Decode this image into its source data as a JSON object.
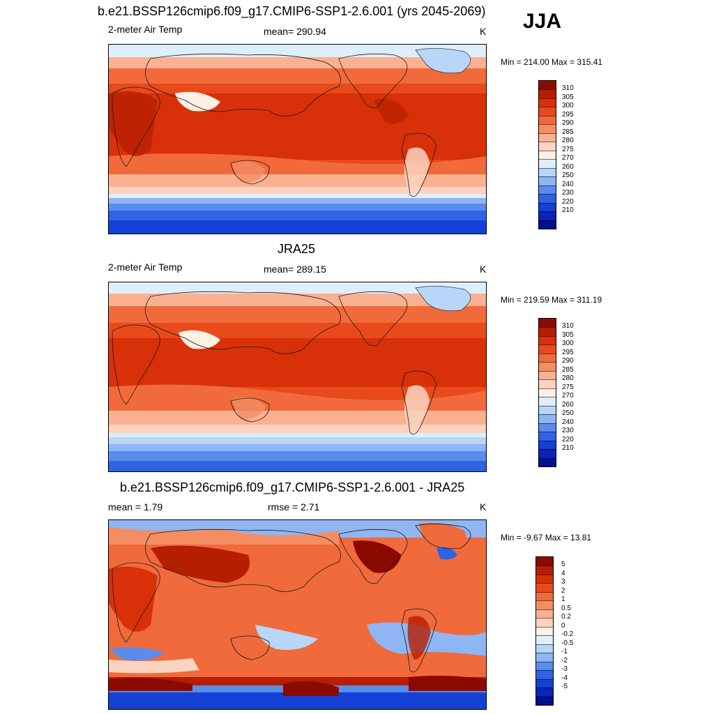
{
  "season": "JJA",
  "panels": [
    {
      "title": "b.e21.BSSP126cmip6.f09_g17.CMIP6-SSP1-2.6.001 (yrs 2045-2069)",
      "left_label": "2-meter Air Temp",
      "center_label": "mean= 290.94",
      "units": "K",
      "minmax": "Min = 214.00 Max = 315.41"
    },
    {
      "title": "JRA25",
      "left_label": "2-meter Air Temp",
      "center_label": "mean= 289.15",
      "units": "K",
      "minmax": "Min = 219.59 Max = 311.19"
    },
    {
      "title": "b.e21.BSSP126cmip6.f09_g17.CMIP6-SSP1-2.6.001 - JRA25",
      "left_label": "mean =   1.79",
      "center_label": "rmse =   2.71",
      "units": "K",
      "minmax": "Min =  -9.67 Max =  13.81"
    }
  ],
  "colorbars": {
    "temperature": {
      "levels": [
        "310",
        "305",
        "300",
        "295",
        "290",
        "285",
        "280",
        "275",
        "270",
        "260",
        "250",
        "240",
        "230",
        "220",
        "210"
      ],
      "colors": [
        "#8b0a00",
        "#b51e00",
        "#d83008",
        "#e84a1c",
        "#f06a3c",
        "#f58d63",
        "#f9b192",
        "#fcd3be",
        "#fdf0e4",
        "#deeefb",
        "#b8d6f8",
        "#8fb5f3",
        "#5a8cec",
        "#2f63e4",
        "#1440d6",
        "#0a24b8",
        "#00108f"
      ]
    },
    "difference": {
      "levels": [
        "5",
        "4",
        "3",
        "2",
        "1",
        "0.5",
        "0.2",
        "0",
        "-0.2",
        "-0.5",
        "-1",
        "-2",
        "-3",
        "-4",
        "-5"
      ],
      "colors": [
        "#8b0a00",
        "#b51e00",
        "#d83008",
        "#e84a1c",
        "#f06a3c",
        "#f58d63",
        "#f9b192",
        "#fcd3be",
        "#fdf0e4",
        "#deeefb",
        "#b8d6f8",
        "#8fb5f3",
        "#5a8cec",
        "#2f63e4",
        "#1440d6",
        "#0a24b8",
        "#00108f"
      ]
    }
  }
}
